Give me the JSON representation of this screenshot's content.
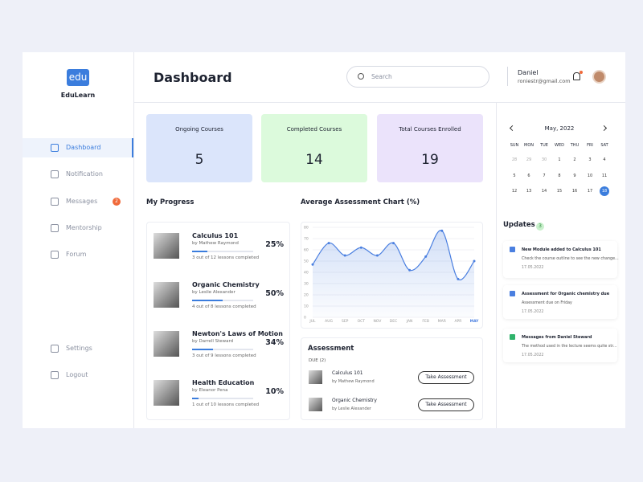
{
  "brand": {
    "logo": "edu",
    "name": "EduLearn"
  },
  "nav": {
    "items": [
      "Dashboard",
      "Notification",
      "Messages",
      "Mentorship",
      "Forum"
    ],
    "messages_badge": 2,
    "bottom": [
      "Settings",
      "Logout"
    ]
  },
  "header": {
    "title": "Dashboard",
    "search_placeholder": "Search",
    "user_name": "Daniel",
    "user_email": "roniestr@gmail.com"
  },
  "stats": [
    {
      "label": "Ongoing Courses",
      "value": 5
    },
    {
      "label": "Completed Courses",
      "value": 14
    },
    {
      "label": "Total Courses Enrolled",
      "value": 19
    }
  ],
  "progress": {
    "title": "My Progress",
    "courses": [
      {
        "title": "Calculus 101",
        "author": "by Mathew Raymond",
        "lessons": "3 out of 12 lessons completed",
        "progress": 25,
        "progress_label": "25%"
      },
      {
        "title": "Organic Chemistry",
        "author": "by Leslie Alexander",
        "lessons": "4 out of 8 lessons completed",
        "progress": 50,
        "progress_label": "50%"
      },
      {
        "title": "Newton's Laws of Motion",
        "author": "by Darrell Steward",
        "lessons": "3 out of 9 lessons completed",
        "progress": 34,
        "progress_label": "34%"
      },
      {
        "title": "Health Education",
        "author": "by Eleanor Pena",
        "lessons": "1 out of 10 lessons completed",
        "progress": 10,
        "progress_label": "10%"
      }
    ]
  },
  "average_chart": {
    "type": "line",
    "title": "Average Assessment Chart (%)",
    "color": "#4a7fe0",
    "categories": [
      "JUL",
      "AUG",
      "SEP",
      "OCT",
      "NOV",
      "DEC",
      "JAN",
      "FEB",
      "MAR",
      "APR",
      "MAY"
    ],
    "values": [
      47,
      66,
      55,
      62,
      55,
      66,
      42,
      54,
      77,
      34,
      50
    ],
    "ylim": [
      0,
      80
    ],
    "yticks": [
      0,
      10,
      20,
      30,
      40,
      50,
      60,
      70,
      80
    ]
  },
  "assessment": {
    "title": "Assessment",
    "due": "DUE (2)",
    "items": [
      {
        "title": "Calculus 101",
        "author": "by Mathew Raymond",
        "action": "Take Assessment"
      },
      {
        "title": "Organic Chemistry",
        "author": "by Leslie Alexander",
        "action": "Take Assessment"
      }
    ]
  },
  "calendar": {
    "month": "May, 2022",
    "weekdays": [
      "SUN",
      "MON",
      "TUE",
      "WED",
      "THU",
      "FRI",
      "SAT"
    ],
    "weeks": [
      [
        28,
        29,
        30,
        1,
        2,
        3,
        4
      ],
      [
        5,
        6,
        7,
        8,
        9,
        10,
        11
      ],
      [
        12,
        13,
        14,
        15,
        16,
        17,
        18
      ]
    ],
    "selected_day": 18
  },
  "updates": {
    "title": "Updates",
    "count": 3,
    "items": [
      {
        "title": "New Module added to Calculus 101",
        "text": "Check the course outline to see the new change...",
        "date": "17.05.2022",
        "color": "#4a7fe0"
      },
      {
        "title": "Assessment for Organic chemistry due",
        "text": "Assessment due on Friday",
        "date": "17.05.2022",
        "color": "#4a7fe0"
      },
      {
        "title": "Messages  from Daniel Steward",
        "text": "The method used in the lecture seems quite str...",
        "date": "17.05.2022",
        "color": "#2fb36b"
      }
    ]
  }
}
